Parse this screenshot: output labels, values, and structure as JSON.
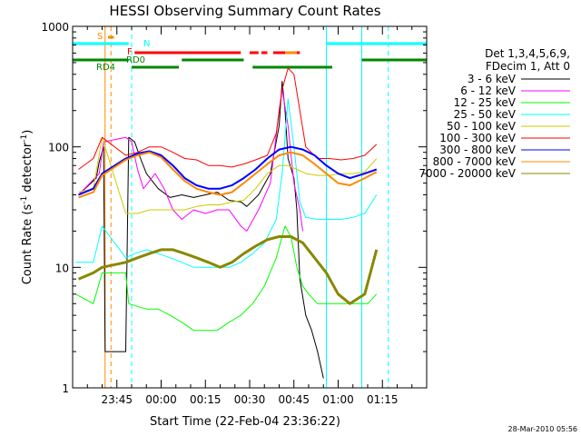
{
  "chart_data": {
    "type": "line",
    "title": "HESSI Observing Summary Count Rates",
    "xlabel": "Start Time (22-Feb-04 23:36:22)",
    "ylabel": "Count Rate (s⁻¹ detector⁻¹)",
    "ylabel_main": "Count Rate (s",
    "ylabel_sup1": "-1",
    "ylabel_mid": " detector",
    "ylabel_sup2": "-1",
    "ylabel_end": ")",
    "yscale": "log",
    "ylim": [
      1,
      1000
    ],
    "xlim_minutes": [
      -15,
      105
    ],
    "y_ticks": [
      {
        "value": 1,
        "label": "1"
      },
      {
        "value": 10,
        "label": "10"
      },
      {
        "value": 100,
        "label": "100"
      },
      {
        "value": 1000,
        "label": "1000"
      }
    ],
    "x_ticks": [
      {
        "minute": 0,
        "label": "23:45"
      },
      {
        "minute": 15,
        "label": "00:00"
      },
      {
        "minute": 30,
        "label": "00:15"
      },
      {
        "minute": 45,
        "label": "00:30"
      },
      {
        "minute": 60,
        "label": "00:45"
      },
      {
        "minute": 75,
        "label": "01:00"
      },
      {
        "minute": 90,
        "label": "01:15"
      }
    ],
    "legend_header": [
      "Det 1,3,4,5,6,9,",
      "FDecim 1, Att 0"
    ],
    "legend_placement": "right",
    "series": [
      {
        "name": "3 - 6 keV",
        "color": "#000000",
        "width": 1,
        "points": [
          [
            -13,
            40
          ],
          [
            -7,
            55
          ],
          [
            -6,
            75
          ],
          [
            -4.5,
            100
          ],
          [
            -4,
            2
          ],
          [
            3,
            2
          ],
          [
            4,
            120
          ],
          [
            6,
            110
          ],
          [
            8,
            80
          ],
          [
            10,
            60
          ],
          [
            14,
            45
          ],
          [
            18,
            38
          ],
          [
            22,
            40
          ],
          [
            26,
            38
          ],
          [
            30,
            40
          ],
          [
            34,
            42
          ],
          [
            38,
            36
          ],
          [
            42,
            35
          ],
          [
            44,
            32
          ],
          [
            48,
            40
          ],
          [
            52,
            60
          ],
          [
            55,
            150
          ],
          [
            56,
            350
          ],
          [
            57,
            200
          ],
          [
            58,
            80
          ],
          [
            60,
            55
          ],
          [
            61,
            30
          ],
          [
            62,
            8
          ],
          [
            64,
            4
          ],
          [
            66,
            3
          ],
          [
            68,
            2
          ],
          [
            70,
            1.2
          ]
        ]
      },
      {
        "name": "6 - 12 keV",
        "color": "#ff00ff",
        "width": 1,
        "points": [
          [
            -13,
            40
          ],
          [
            -6,
            60
          ],
          [
            -4.5,
            110
          ],
          [
            3,
            120
          ],
          [
            5,
            110
          ],
          [
            7,
            65
          ],
          [
            9,
            45
          ],
          [
            13,
            60
          ],
          [
            16,
            45
          ],
          [
            19,
            30
          ],
          [
            22,
            25
          ],
          [
            26,
            30
          ],
          [
            30,
            28
          ],
          [
            34,
            30
          ],
          [
            38,
            30
          ],
          [
            42,
            22
          ],
          [
            44,
            20
          ],
          [
            48,
            30
          ],
          [
            52,
            50
          ],
          [
            55,
            200
          ],
          [
            56,
            300
          ],
          [
            58,
            150
          ],
          [
            60,
            50
          ],
          [
            62,
            30
          ],
          [
            63,
            20
          ]
        ]
      },
      {
        "name": "12 - 25 keV",
        "color": "#00ff00",
        "width": 1,
        "points": [
          [
            -14,
            6
          ],
          [
            -8,
            5
          ],
          [
            -5,
            9
          ],
          [
            3,
            9
          ],
          [
            4,
            5
          ],
          [
            10,
            4.5
          ],
          [
            14,
            4.5
          ],
          [
            18,
            4
          ],
          [
            22,
            3.5
          ],
          [
            26,
            3
          ],
          [
            30,
            3
          ],
          [
            34,
            3
          ],
          [
            38,
            3.5
          ],
          [
            42,
            4
          ],
          [
            46,
            5
          ],
          [
            50,
            7
          ],
          [
            54,
            12
          ],
          [
            57,
            22
          ],
          [
            59,
            18
          ],
          [
            61,
            10
          ],
          [
            63,
            7
          ],
          [
            65,
            6
          ],
          [
            68,
            5
          ],
          [
            72,
            5
          ],
          [
            76,
            5
          ],
          [
            80,
            5
          ],
          [
            85,
            5
          ],
          [
            88,
            6
          ]
        ]
      },
      {
        "name": "25 - 50 keV",
        "color": "#00ffff",
        "width": 1,
        "points": [
          [
            -14,
            11
          ],
          [
            -8,
            11
          ],
          [
            -5,
            22
          ],
          [
            3,
            12
          ],
          [
            6,
            13
          ],
          [
            10,
            14
          ],
          [
            14,
            13
          ],
          [
            18,
            12
          ],
          [
            22,
            11
          ],
          [
            26,
            10
          ],
          [
            30,
            10
          ],
          [
            34,
            10
          ],
          [
            38,
            10
          ],
          [
            42,
            11
          ],
          [
            46,
            13
          ],
          [
            50,
            16
          ],
          [
            54,
            25
          ],
          [
            56,
            60
          ],
          [
            58,
            250
          ],
          [
            60,
            100
          ],
          [
            62,
            35
          ],
          [
            64,
            26
          ],
          [
            68,
            25
          ],
          [
            72,
            25
          ],
          [
            76,
            25
          ],
          [
            80,
            26
          ],
          [
            84,
            28
          ],
          [
            88,
            40
          ]
        ]
      },
      {
        "name": "50 - 100 keV",
        "color": "#cccc00",
        "width": 1,
        "points": [
          [
            -13,
            42
          ],
          [
            -8,
            45
          ],
          [
            -5,
            120
          ],
          [
            3,
            28
          ],
          [
            7,
            28
          ],
          [
            11,
            30
          ],
          [
            15,
            30
          ],
          [
            19,
            30
          ],
          [
            23,
            30
          ],
          [
            27,
            32
          ],
          [
            31,
            33
          ],
          [
            35,
            33
          ],
          [
            39,
            35
          ],
          [
            43,
            36
          ],
          [
            47,
            45
          ],
          [
            51,
            60
          ],
          [
            55,
            70
          ],
          [
            58,
            70
          ],
          [
            61,
            65
          ],
          [
            64,
            60
          ],
          [
            68,
            58
          ],
          [
            72,
            58
          ],
          [
            76,
            60
          ],
          [
            80,
            60
          ],
          [
            84,
            62
          ],
          [
            88,
            80
          ]
        ]
      },
      {
        "name": "100 - 300 keV",
        "color": "#ff0000",
        "width": 1,
        "points": [
          [
            -13,
            65
          ],
          [
            -8,
            80
          ],
          [
            -5,
            120
          ],
          [
            3,
            85
          ],
          [
            7,
            90
          ],
          [
            11,
            100
          ],
          [
            15,
            100
          ],
          [
            19,
            90
          ],
          [
            23,
            80
          ],
          [
            27,
            78
          ],
          [
            31,
            70
          ],
          [
            35,
            70
          ],
          [
            39,
            68
          ],
          [
            43,
            72
          ],
          [
            47,
            78
          ],
          [
            51,
            85
          ],
          [
            54,
            130
          ],
          [
            56,
            300
          ],
          [
            58,
            450
          ],
          [
            60,
            400
          ],
          [
            62,
            200
          ],
          [
            64,
            100
          ],
          [
            68,
            80
          ],
          [
            72,
            80
          ],
          [
            76,
            78
          ],
          [
            80,
            80
          ],
          [
            84,
            85
          ],
          [
            88,
            105
          ]
        ]
      },
      {
        "name": "300 - 800 keV",
        "color": "#0000ff",
        "width": 2,
        "points": [
          [
            -13,
            40
          ],
          [
            -8,
            45
          ],
          [
            -5,
            60
          ],
          [
            3,
            80
          ],
          [
            7,
            88
          ],
          [
            11,
            92
          ],
          [
            15,
            85
          ],
          [
            19,
            70
          ],
          [
            23,
            55
          ],
          [
            27,
            48
          ],
          [
            31,
            45
          ],
          [
            35,
            45
          ],
          [
            39,
            48
          ],
          [
            43,
            55
          ],
          [
            47,
            65
          ],
          [
            51,
            80
          ],
          [
            55,
            95
          ],
          [
            59,
            100
          ],
          [
            63,
            95
          ],
          [
            67,
            85
          ],
          [
            71,
            70
          ],
          [
            75,
            60
          ],
          [
            79,
            55
          ],
          [
            84,
            60
          ],
          [
            88,
            65
          ]
        ]
      },
      {
        "name": "800 - 7000 keV",
        "color": "#ff8800",
        "width": 2,
        "points": [
          [
            -13,
            38
          ],
          [
            -8,
            42
          ],
          [
            -5,
            58
          ],
          [
            3,
            78
          ],
          [
            7,
            85
          ],
          [
            11,
            90
          ],
          [
            15,
            82
          ],
          [
            19,
            65
          ],
          [
            23,
            52
          ],
          [
            27,
            45
          ],
          [
            31,
            42
          ],
          [
            35,
            40
          ],
          [
            39,
            42
          ],
          [
            43,
            50
          ],
          [
            47,
            60
          ],
          [
            51,
            72
          ],
          [
            55,
            85
          ],
          [
            59,
            90
          ],
          [
            63,
            85
          ],
          [
            67,
            72
          ],
          [
            71,
            60
          ],
          [
            75,
            50
          ],
          [
            79,
            48
          ],
          [
            84,
            55
          ],
          [
            88,
            62
          ]
        ]
      },
      {
        "name": "7000 - 20000 keV",
        "color": "#888800",
        "width": 3,
        "points": [
          [
            -13,
            8
          ],
          [
            -8,
            9
          ],
          [
            -5,
            10
          ],
          [
            3,
            11
          ],
          [
            7,
            12
          ],
          [
            11,
            13
          ],
          [
            15,
            14
          ],
          [
            19,
            14
          ],
          [
            23,
            13
          ],
          [
            27,
            12
          ],
          [
            31,
            11
          ],
          [
            35,
            10
          ],
          [
            39,
            11
          ],
          [
            43,
            13
          ],
          [
            47,
            15
          ],
          [
            51,
            17
          ],
          [
            55,
            18
          ],
          [
            59,
            18
          ],
          [
            63,
            16
          ],
          [
            67,
            12
          ],
          [
            71,
            9
          ],
          [
            75,
            6
          ],
          [
            79,
            5
          ],
          [
            84,
            6
          ],
          [
            88,
            14
          ]
        ]
      }
    ],
    "vertical_lines": [
      {
        "minute": -15,
        "color": "#00ffff",
        "style": "solid"
      },
      {
        "minute": -4,
        "color": "#ff8800",
        "style": "solid"
      },
      {
        "minute": -2,
        "color": "#ff8800",
        "style": "dashed"
      },
      {
        "minute": 5,
        "color": "#00ffff",
        "style": "dashed"
      },
      {
        "minute": 71,
        "color": "#00ffff",
        "style": "solid"
      },
      {
        "minute": 83,
        "color": "#00ffff",
        "style": "solid"
      },
      {
        "minute": 92,
        "color": "#00ffff",
        "style": "dashed"
      }
    ],
    "flag_bars": [
      {
        "label": "S",
        "color": "#ff8800",
        "start": -3,
        "end": -1,
        "level": 1
      },
      {
        "label": "N",
        "color": "#00ffff",
        "start": -15,
        "end": 4,
        "level": 2
      },
      {
        "label": "",
        "color": "#00ffff",
        "start": 71,
        "end": 105,
        "level": 2
      },
      {
        "label": "F",
        "color": "#ff0000",
        "start": 6,
        "end": 42,
        "level": 3
      },
      {
        "label": "",
        "color": "#ff0000",
        "start": 45,
        "end": 48,
        "level": 3
      },
      {
        "label": "",
        "color": "#ff0000",
        "start": 49,
        "end": 51,
        "level": 3
      },
      {
        "label": "",
        "color": "#ff0000",
        "start": 53,
        "end": 62,
        "level": 3
      },
      {
        "label": "",
        "color": "#ff8800",
        "start": 57,
        "end": 61,
        "level": 3
      },
      {
        "label": "RD0",
        "color": "#008800",
        "start": -15,
        "end": 4,
        "level": 4
      },
      {
        "label": "",
        "color": "#008800",
        "start": 22,
        "end": 43,
        "level": 4
      },
      {
        "label": "",
        "color": "#008800",
        "start": 83,
        "end": 105,
        "level": 4
      },
      {
        "label": "RD4",
        "color": "#008800",
        "start": 5,
        "end": 21,
        "level": 5
      },
      {
        "label": "",
        "color": "#008800",
        "start": 46,
        "end": 73,
        "level": 5
      }
    ]
  },
  "timestamp": "28-Mar-2010 05:56"
}
